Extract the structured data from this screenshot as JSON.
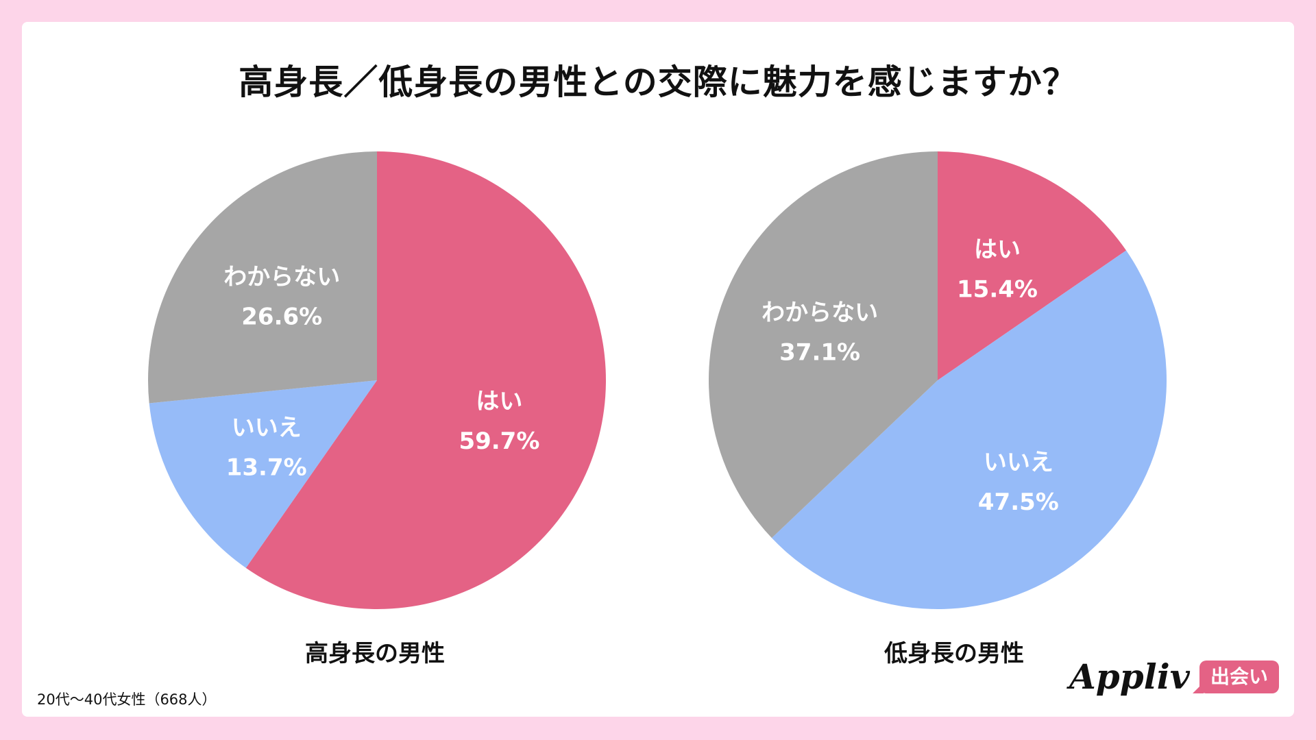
{
  "title": "高身長／低身長の男性との交際に魅力を感じますか？",
  "footnote": "20代〜40代女性（668人）",
  "logo": {
    "text": "Appliv",
    "badge": "出会い"
  },
  "chart_data": [
    {
      "type": "pie",
      "title": "高身長の男性",
      "start": "top",
      "direction": "clockwise",
      "slices": [
        {
          "label": "はい",
          "value": 59.7,
          "display": "59.7%",
          "color": "#E46285"
        },
        {
          "label": "いいえ",
          "value": 13.7,
          "display": "13.7%",
          "color": "#96BBF8"
        },
        {
          "label": "わからない",
          "value": 26.6,
          "display": "26.6%",
          "color": "#A6A6A6"
        }
      ]
    },
    {
      "type": "pie",
      "title": "低身長の男性",
      "start": "top",
      "direction": "clockwise",
      "slices": [
        {
          "label": "はい",
          "value": 15.4,
          "display": "15.4%",
          "color": "#E46285"
        },
        {
          "label": "いいえ",
          "value": 47.5,
          "display": "47.5%",
          "color": "#96BBF8"
        },
        {
          "label": "わからない",
          "value": 37.1,
          "display": "37.1%",
          "color": "#A6A6A6"
        }
      ]
    }
  ]
}
